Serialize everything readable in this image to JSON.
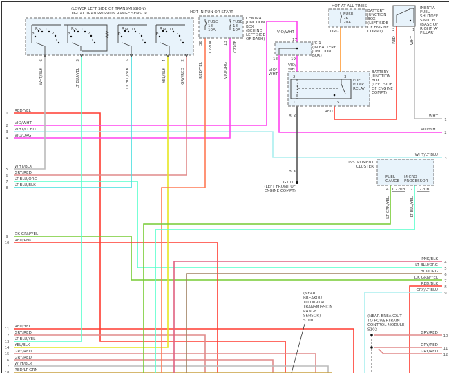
{
  "sensor": {
    "title1": "(LOWER LEFT SIDE OF TRANSMISSION)",
    "title2": "DIGITAL TRANSMISSION RANGE SENSOR",
    "positions": [
      "P",
      "R",
      "N",
      "D",
      "2",
      "1"
    ],
    "pins": [
      {
        "num": "6",
        "wire": "WHT/BLK"
      },
      {
        "num": "3",
        "wire": "LT BLU/YEL"
      },
      {
        "num": "5",
        "wire": "LT BLU/BLK"
      },
      {
        "num": "4",
        "wire": "YEL/BLK"
      },
      {
        "num": "2",
        "wire": "GRY/RED"
      }
    ]
  },
  "central_jb": {
    "hot": "HOT IN RUN OR START",
    "fuse1": [
      "FUSE",
      "18",
      "10A"
    ],
    "fuse2": [
      "FUSE",
      "18",
      "10A"
    ],
    "label": [
      "CENTRAL",
      "JUNCTION",
      "BOX",
      "(BEHIND",
      "LEFT SIDE",
      "OF DASH)"
    ],
    "pin1": "36",
    "conn1": "C220A",
    "wire1": "RED/YEL",
    "pin2": "13",
    "conn2": "C270F",
    "wire2": "VIO/ORG"
  },
  "battery_jb_top": {
    "hot": "HOT AT ALL TIMES",
    "fuse": [
      "FUSE",
      "26",
      "20A"
    ],
    "wire": "ORG",
    "label": [
      "BATTERY",
      "JUNCTION",
      "BOX",
      "(LEFT SIDE",
      "OF ENGINE",
      "COMPT)"
    ]
  },
  "inertia": {
    "label": [
      "INERTIA",
      "FUEL",
      "SHUTOFF",
      "SWITCH",
      "(BASE OF",
      "RIGHT 'A'",
      "PILLAR)"
    ],
    "pin2": "2",
    "pin1": "1",
    "wire2": "RED",
    "wire1": "WHT"
  },
  "jc1": {
    "label": [
      "J/C 1",
      "(IN BATTERY",
      "JUNCTION",
      "BOX)"
    ],
    "pin17": "17",
    "pin18": "18",
    "pin19": "19",
    "wire_top": "VIO/WHT",
    "wire18": [
      "VIO/",
      "WHT"
    ],
    "wire19": [
      "VIO/",
      "WHT"
    ]
  },
  "relay": {
    "name": [
      "FUEL",
      "PUMP",
      "RELAY"
    ],
    "label": [
      "BATTERY",
      "JUNCTION",
      "BOX",
      "(LEFT SIDE",
      "OF ENGINE",
      "COMPT)"
    ],
    "pin2": "2",
    "pin3": "3",
    "pin1": "1",
    "pin5": "5",
    "wire5": "RED",
    "wire1": "BLK"
  },
  "ground": {
    "wire": "BLK",
    "name": "G101",
    "loc": [
      "(LEFT FRONT OF",
      "ENGINE COMPT)"
    ]
  },
  "cluster": {
    "label": [
      "INSTRUMENT",
      "CLUSTER"
    ],
    "fuel": [
      "FUEL",
      "GAUGE"
    ],
    "micro": [
      "MICRO-",
      "PROCESSOR"
    ],
    "pin4": "4",
    "conn4": "C220B",
    "wire4": "LT GRN/YEL",
    "pin7": "7",
    "conn7": "C220B",
    "wire7": "LT BLU/YEL"
  },
  "splice_s100": [
    "(NEAR",
    "BREAKOUT",
    "TO DIGITAL",
    "TRANSMISSION",
    "RANGE",
    "SENSOR)",
    "S100"
  ],
  "splice_s102": [
    "(NEAR BREAKOUT",
    "TO POWERTRAIN",
    "CONTROL MODULE)",
    "S102"
  ],
  "left_wires": [
    {
      "num": "1",
      "label": "RED/YEL"
    },
    {
      "num": "2",
      "label": "VIO/WHT"
    },
    {
      "num": "3",
      "label": "WHT/LT BLU"
    },
    {
      "num": "4",
      "label": "VIO/ORG"
    },
    {
      "num": "5",
      "label": "WHT/BLK"
    },
    {
      "num": "6",
      "label": "GRY/RED"
    },
    {
      "num": "7",
      "label": "LT BLU/ORG"
    },
    {
      "num": "8",
      "label": "LT BLU/BLK"
    },
    {
      "num": "9",
      "label": "DK GRN/YEL"
    },
    {
      "num": "10",
      "label": "RED/PNK"
    },
    {
      "num": "11",
      "label": "RED/YEL"
    },
    {
      "num": "12",
      "label": "GRY/RED"
    },
    {
      "num": "13",
      "label": "LT BLU/YEL"
    },
    {
      "num": "14",
      "label": "YEL/BLK"
    },
    {
      "num": "15",
      "label": "GRY/RED"
    },
    {
      "num": "16",
      "label": "GRY/RED"
    },
    {
      "num": "17",
      "label": "WHT/BLK"
    },
    {
      "num": "18",
      "label": "RED/LT GRN"
    }
  ],
  "right_wires": [
    {
      "num": "1",
      "label": "WHT"
    },
    {
      "num": "2",
      "label": "VIO/WHT"
    },
    {
      "num": "3",
      "label": "WHT/LT BLU"
    },
    {
      "num": "4",
      "label": "PNK/BLK"
    },
    {
      "num": "5",
      "label": "LT BLU/ORG"
    },
    {
      "num": "6",
      "label": "BLK/ORG"
    },
    {
      "num": "7",
      "label": "DK GRN/YEL"
    },
    {
      "num": "8",
      "label": "RED/BLK"
    },
    {
      "num": "9",
      "label": "GRY/LT BLU"
    },
    {
      "num": "10",
      "label": "GRY/RED"
    },
    {
      "num": "11",
      "label": "GRY/RED"
    },
    {
      "num": "12",
      "label": "GRY/RED"
    }
  ],
  "wire_colors": {
    "red": "#ff3b30",
    "red_yel": "#ff7a55",
    "vio": "#ff44ee",
    "wht_ltblu": "#aaeeee",
    "ltblu": "#44dddd",
    "ltblu_yel": "#55ffcc",
    "gry": "#bbbbbb",
    "gry_red": "#e08a8a",
    "yel": "#e6e622",
    "grn": "#77cc33",
    "blk": "#555555",
    "blk_org": "#a08060",
    "pnk_blk": "#e06080",
    "org": "#ff9933"
  }
}
